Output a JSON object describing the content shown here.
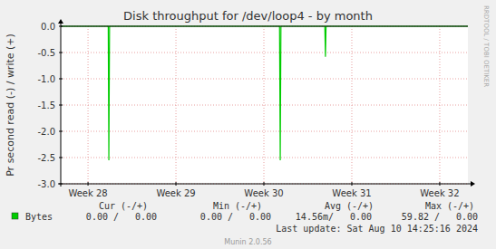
{
  "chart_data": {
    "type": "line",
    "title": "Disk throughput for /dev/loop4 - by month",
    "y_label": "Pr second read (-) / write (+)",
    "x": [
      27.69,
      28.23,
      28.237,
      28.245,
      30.178,
      30.186,
      30.194,
      30.693,
      30.7,
      30.707,
      32.32
    ],
    "series": [
      {
        "name": "Bytes",
        "color": "#00cc00",
        "values": [
          0,
          0,
          -2.55,
          0,
          0,
          -2.55,
          0,
          0,
          -0.58,
          0,
          0
        ]
      }
    ],
    "xlim": [
      27.69,
      32.32
    ],
    "xticks": [
      {
        "value": 28,
        "label": "Week 28"
      },
      {
        "value": 29,
        "label": "Week 29"
      },
      {
        "value": 30,
        "label": "Week 30"
      },
      {
        "value": 31,
        "label": "Week 31"
      },
      {
        "value": 32,
        "label": "Week 32"
      }
    ],
    "ylim": [
      -3,
      0
    ],
    "yticks": [
      {
        "value": 0,
        "label": "0.0"
      },
      -0.5,
      {
        "value": -1,
        "label": "-1.0"
      },
      -1.5,
      {
        "value": -2,
        "label": "-2.0"
      },
      -2.5,
      {
        "value": -3,
        "label": "-3.0"
      }
    ],
    "grid": true,
    "legend": "bottom",
    "legend_table": {
      "headers": [
        "Cur (-/+)",
        "Min (-/+)",
        "Avg (-/+)",
        "Max (-/+)"
      ],
      "rows": [
        {
          "name": "Bytes",
          "cells": [
            "0.00 /   0.00",
            "0.00 /   0.00",
            "14.56m/   0.00",
            "59.82 /   0.00"
          ]
        }
      ]
    },
    "last_update": "Last update: Sat Aug 10 14:25:16 2024",
    "credit": "Munin 2.0.56",
    "watermark": "RRDTOOL / TOBI OETIKER"
  }
}
